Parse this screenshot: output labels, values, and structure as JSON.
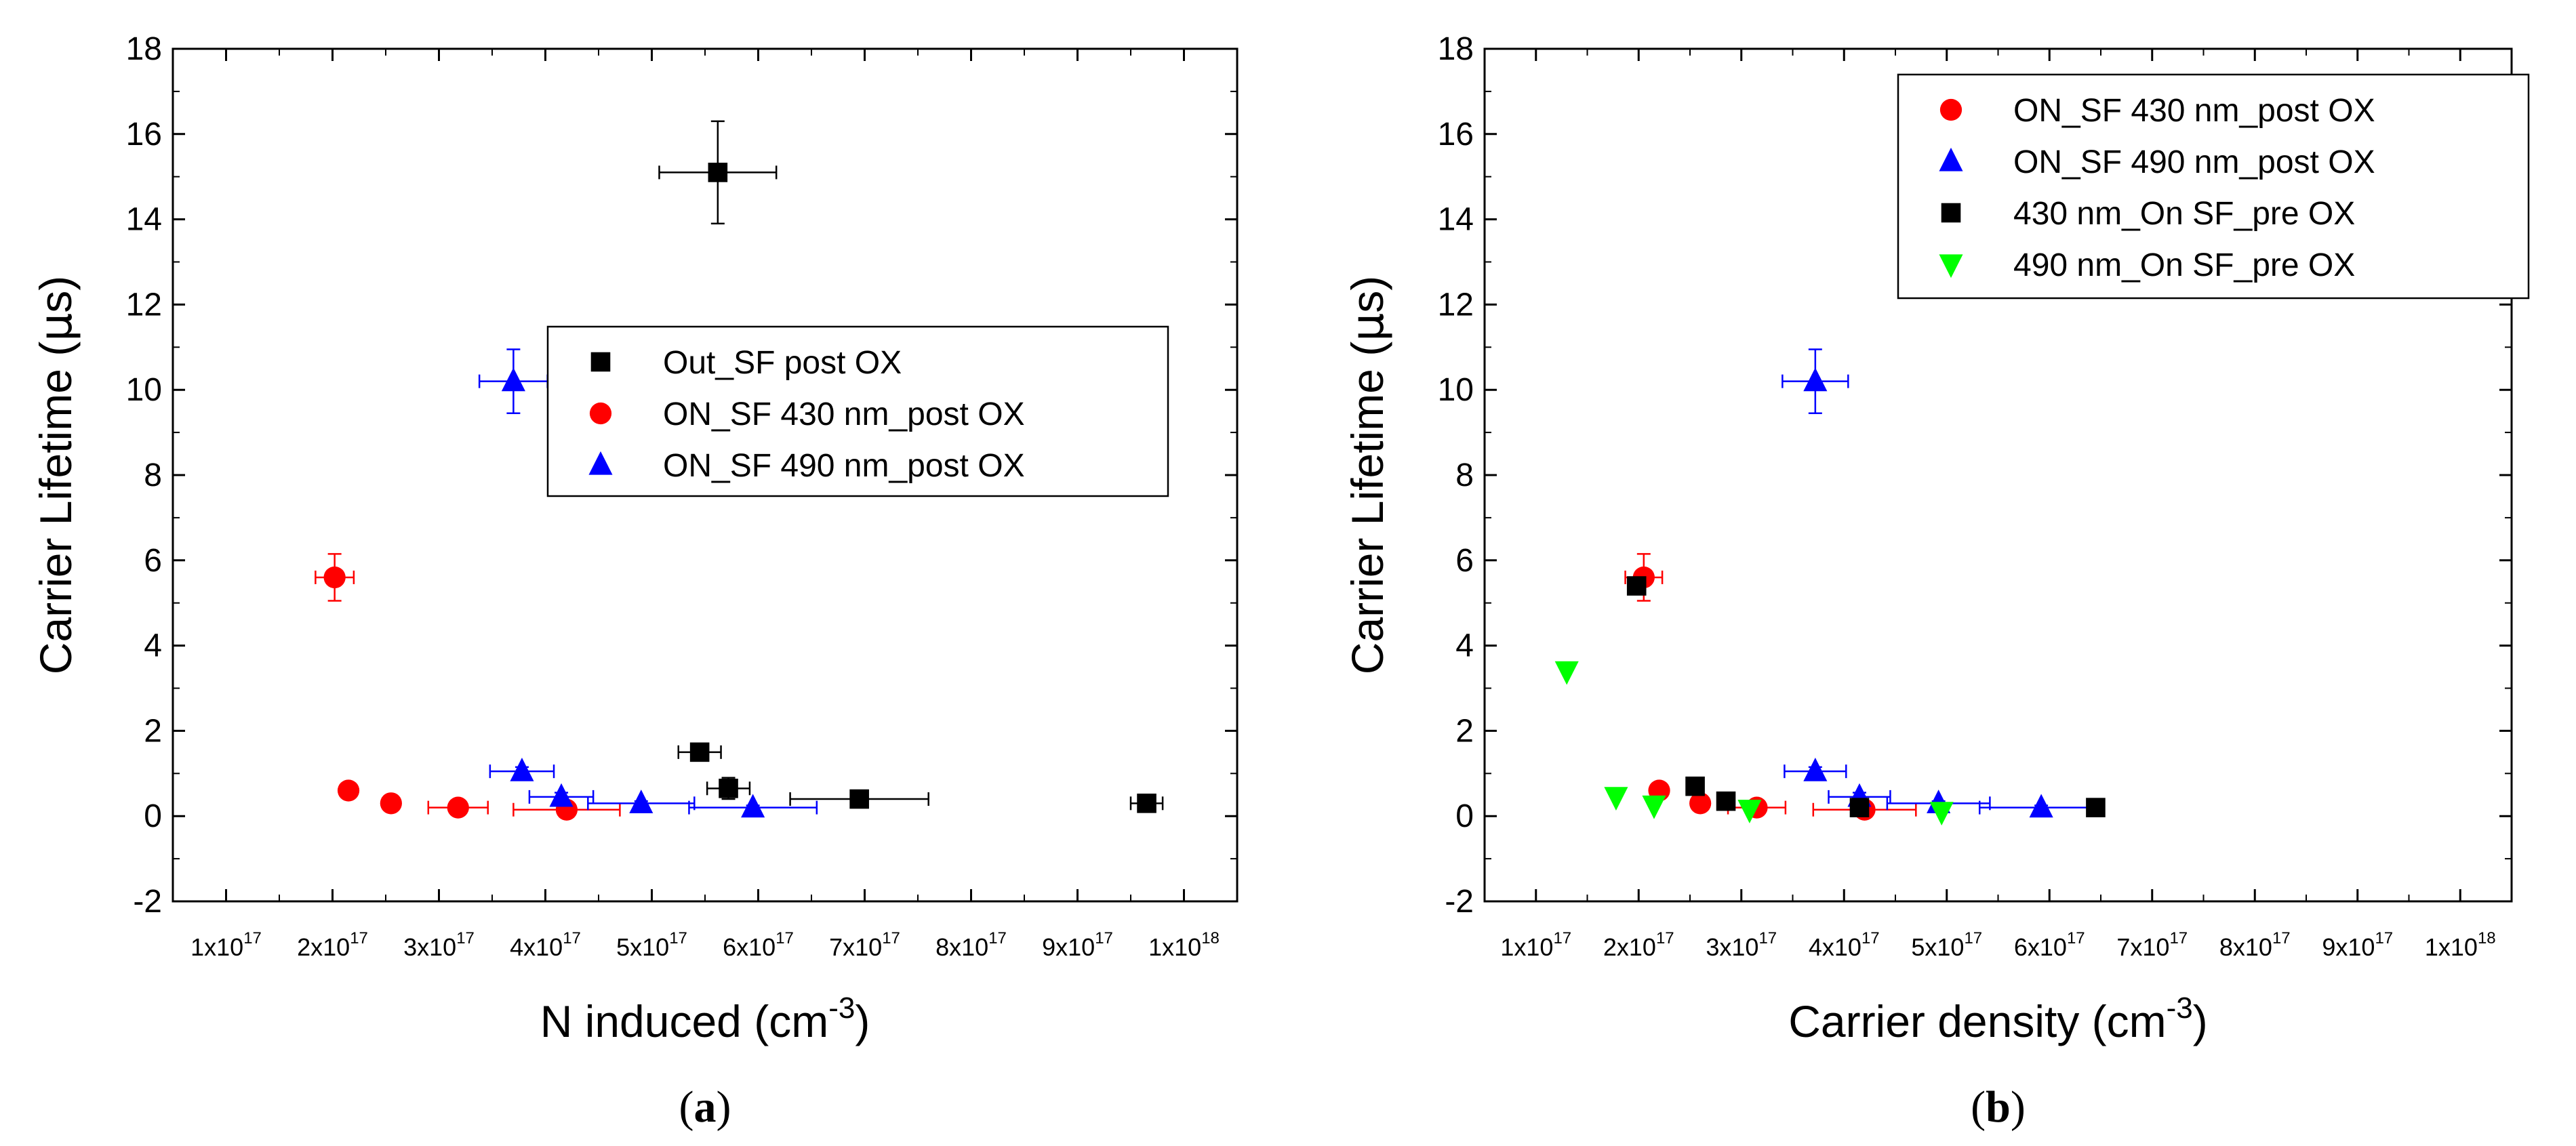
{
  "chart_data": [
    {
      "type": "scatter",
      "panel_label": "a",
      "xlabel_base": "N induced (cm",
      "xlabel_exp": "-3",
      "xlabel_close": ")",
      "ylabel_prefix": "Carrier Lifetime (",
      "ylabel_mu": "μ",
      "ylabel_suffix": "s)",
      "xlim": [
        5e+16,
        1.05e+18
      ],
      "ylim": [
        -2,
        18
      ],
      "yticks": [
        -2,
        0,
        2,
        4,
        6,
        8,
        10,
        12,
        14,
        16,
        18
      ],
      "xticks": [
        {
          "value": 1e+17,
          "mant": "1x10",
          "exp": "17"
        },
        {
          "value": 2e+17,
          "mant": "2x10",
          "exp": "17"
        },
        {
          "value": 3e+17,
          "mant": "3x10",
          "exp": "17"
        },
        {
          "value": 4e+17,
          "mant": "4x10",
          "exp": "17"
        },
        {
          "value": 5e+17,
          "mant": "5x10",
          "exp": "17"
        },
        {
          "value": 6e+17,
          "mant": "6x10",
          "exp": "17"
        },
        {
          "value": 7e+17,
          "mant": "7x10",
          "exp": "17"
        },
        {
          "value": 8e+17,
          "mant": "8x10",
          "exp": "17"
        },
        {
          "value": 9e+17,
          "mant": "9x10",
          "exp": "17"
        },
        {
          "value": 1e+18,
          "mant": "1x10",
          "exp": "18"
        }
      ],
      "legend_position": "center-right",
      "series": [
        {
          "name": "Out_SF post OX",
          "marker": "square",
          "color": "#000000",
          "points": [
            {
              "x": 5.62e+17,
              "y": 15.1,
              "xerr": 5.5e+16,
              "yerr": 1.2
            },
            {
              "x": 5.45e+17,
              "y": 1.5,
              "xerr": 2e+16,
              "yerr": 0.1
            },
            {
              "x": 5.72e+17,
              "y": 0.65,
              "xerr": 2e+16,
              "yerr": 0.25
            },
            {
              "x": 6.95e+17,
              "y": 0.4,
              "xerr": 6.5e+16,
              "yerr": 0.1
            },
            {
              "x": 9.65e+17,
              "y": 0.3,
              "xerr": 1.5e+16,
              "yerr": 0.1
            }
          ]
        },
        {
          "name": "ON_SF 430 nm_post OX",
          "marker": "circle",
          "color": "#ff0000",
          "points": [
            {
              "x": 2.02e+17,
              "y": 5.6,
              "xerr": 1.8e+16,
              "yerr": 0.55
            },
            {
              "x": 2.15e+17,
              "y": 0.6,
              "xerr": 5000000000000000.0,
              "yerr": 0.1
            },
            {
              "x": 2.55e+17,
              "y": 0.3,
              "xerr": 3000000000000000.0,
              "yerr": 0.05
            },
            {
              "x": 3.18e+17,
              "y": 0.2,
              "xerr": 2.8e+16,
              "yerr": 0.05
            },
            {
              "x": 4.2e+17,
              "y": 0.15,
              "xerr": 5e+16,
              "yerr": 0.05
            }
          ]
        },
        {
          "name": "ON_SF 490 nm_post OX",
          "marker": "triangle-up",
          "color": "#0000ff",
          "points": [
            {
              "x": 3.7e+17,
              "y": 10.2,
              "xerr": 3.2e+16,
              "yerr": 0.75
            },
            {
              "x": 3.78e+17,
              "y": 1.05,
              "xerr": 3e+16,
              "yerr": 0.1
            },
            {
              "x": 4.15e+17,
              "y": 0.45,
              "xerr": 3e+16,
              "yerr": 0.1
            },
            {
              "x": 4.9e+17,
              "y": 0.3,
              "xerr": 5e+16,
              "yerr": 0.05
            },
            {
              "x": 5.95e+17,
              "y": 0.2,
              "xerr": 6e+16,
              "yerr": 0.05
            }
          ]
        }
      ]
    },
    {
      "type": "scatter",
      "panel_label": "b",
      "xlabel_base": "Carrier density (cm",
      "xlabel_exp": "-3",
      "xlabel_close": ")",
      "ylabel_prefix": "Carrier Lifetime (",
      "ylabel_mu": "μ",
      "ylabel_suffix": "s)",
      "xlim": [
        5e+16,
        1.05e+18
      ],
      "ylim": [
        -2,
        18
      ],
      "yticks": [
        -2,
        0,
        2,
        4,
        6,
        8,
        10,
        12,
        14,
        16,
        18
      ],
      "xticks": [
        {
          "value": 1e+17,
          "mant": "1x10",
          "exp": "17"
        },
        {
          "value": 2e+17,
          "mant": "2x10",
          "exp": "17"
        },
        {
          "value": 3e+17,
          "mant": "3x10",
          "exp": "17"
        },
        {
          "value": 4e+17,
          "mant": "4x10",
          "exp": "17"
        },
        {
          "value": 5e+17,
          "mant": "5x10",
          "exp": "17"
        },
        {
          "value": 6e+17,
          "mant": "6x10",
          "exp": "17"
        },
        {
          "value": 7e+17,
          "mant": "7x10",
          "exp": "17"
        },
        {
          "value": 8e+17,
          "mant": "8x10",
          "exp": "17"
        },
        {
          "value": 9e+17,
          "mant": "9x10",
          "exp": "17"
        },
        {
          "value": 1e+18,
          "mant": "1x10",
          "exp": "18"
        }
      ],
      "legend_position": "top-right",
      "series": [
        {
          "name": "ON_SF 430 nm_post OX",
          "marker": "circle",
          "color": "#ff0000",
          "points": [
            {
              "x": 2.05e+17,
              "y": 5.6,
              "xerr": 1.8e+16,
              "yerr": 0.55
            },
            {
              "x": 2.2e+17,
              "y": 0.6,
              "xerr": 5000000000000000.0,
              "yerr": 0.1
            },
            {
              "x": 2.6e+17,
              "y": 0.3,
              "xerr": 3000000000000000.0,
              "yerr": 0.05
            },
            {
              "x": 3.15e+17,
              "y": 0.2,
              "xerr": 2.8e+16,
              "yerr": 0.05
            },
            {
              "x": 4.2e+17,
              "y": 0.15,
              "xerr": 5e+16,
              "yerr": 0.05
            }
          ]
        },
        {
          "name": "ON_SF 490 nm_post OX",
          "marker": "triangle-up",
          "color": "#0000ff",
          "points": [
            {
              "x": 3.72e+17,
              "y": 10.2,
              "xerr": 3.2e+16,
              "yerr": 0.75
            },
            {
              "x": 3.72e+17,
              "y": 1.05,
              "xerr": 3e+16,
              "yerr": 0.1
            },
            {
              "x": 4.15e+17,
              "y": 0.45,
              "xerr": 3e+16,
              "yerr": 0.1
            },
            {
              "x": 4.92e+17,
              "y": 0.3,
              "xerr": 5e+16,
              "yerr": 0.05
            },
            {
              "x": 5.92e+17,
              "y": 0.2,
              "xerr": 6e+16,
              "yerr": 0.05
            }
          ]
        },
        {
          "name": "430 nm_On SF_pre OX",
          "marker": "square",
          "color": "#000000",
          "points": [
            {
              "x": 1.98e+17,
              "y": 5.4
            },
            {
              "x": 2.55e+17,
              "y": 0.7
            },
            {
              "x": 2.85e+17,
              "y": 0.35
            },
            {
              "x": 4.15e+17,
              "y": 0.2
            },
            {
              "x": 6.45e+17,
              "y": 0.2
            }
          ]
        },
        {
          "name": "490 nm_On SF_pre OX",
          "marker": "triangle-down",
          "color": "#00ff00",
          "points": [
            {
              "x": 1.3e+17,
              "y": 3.4
            },
            {
              "x": 1.78e+17,
              "y": 0.45
            },
            {
              "x": 2.15e+17,
              "y": 0.25
            },
            {
              "x": 3.08e+17,
              "y": 0.15
            },
            {
              "x": 4.95e+17,
              "y": 0.1
            }
          ]
        }
      ]
    }
  ]
}
